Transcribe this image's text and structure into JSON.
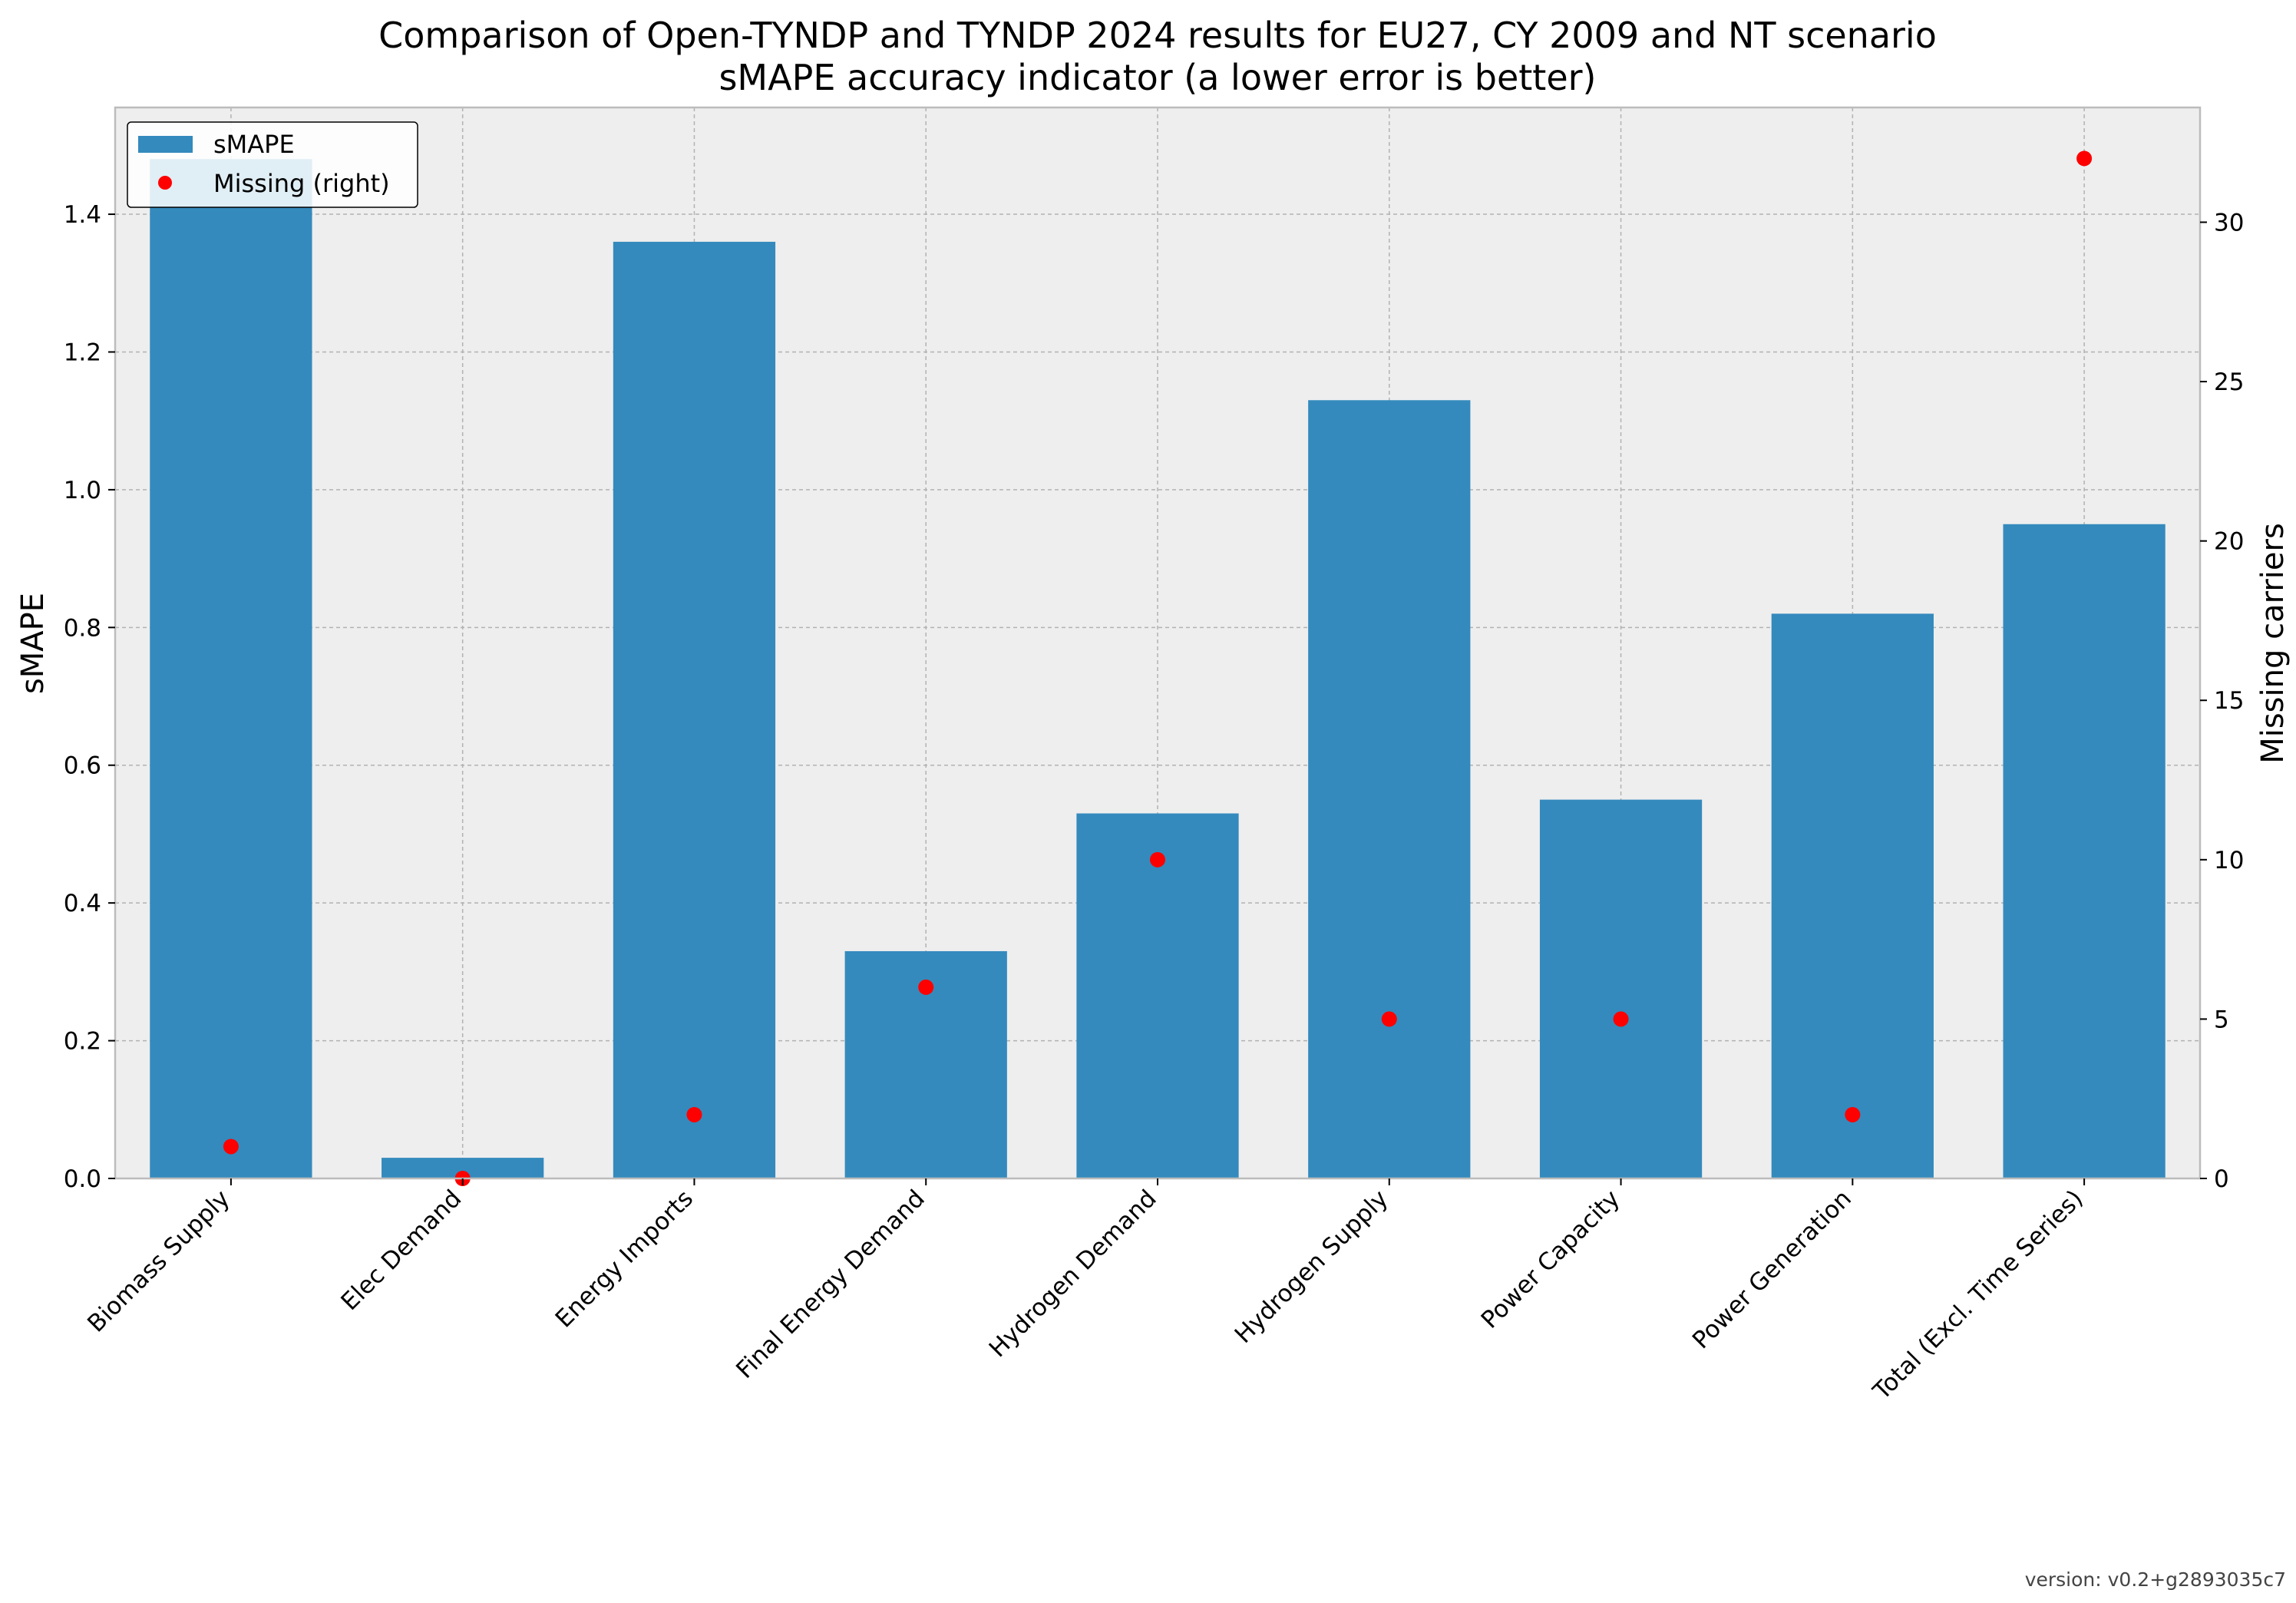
{
  "chart_data": {
    "type": "bar",
    "title": "Comparison of Open-TYNDP and TYNDP 2024 results for EU27, CY 2009 and NT scenario",
    "subtitle": "sMAPE accuracy indicator (a lower error is better)",
    "categories": [
      "Biomass Supply",
      "Elec Demand",
      "Energy Imports",
      "Final Energy Demand",
      "Hydrogen Demand",
      "Hydrogen Supply",
      "Power Capacity",
      "Power Generation",
      "Total (Excl. Time Series)"
    ],
    "series": [
      {
        "name": "sMAPE",
        "type": "bar",
        "axis": "left",
        "color": "#348abd",
        "values": [
          1.48,
          0.03,
          1.36,
          0.33,
          0.53,
          1.13,
          0.55,
          0.82,
          0.95
        ]
      },
      {
        "name": "Missing (right)",
        "type": "scatter",
        "axis": "right",
        "color": "#ff0000",
        "values": [
          1,
          0,
          2,
          6,
          10,
          5,
          5,
          2,
          32
        ]
      }
    ],
    "ylabel": "sMAPE",
    "ylabel_right": "Missing carriers",
    "ylim": [
      0,
      1.555
    ],
    "ylim_right": [
      0,
      33.6
    ],
    "yticks": [
      "0.0",
      "0.2",
      "0.4",
      "0.6",
      "0.8",
      "1.0",
      "1.2",
      "1.4"
    ],
    "yticks_right": [
      "0",
      "5",
      "10",
      "15",
      "20",
      "25",
      "30"
    ],
    "grid": true,
    "legend_position": "top-left",
    "background_color": "#eeeeee"
  },
  "footer": {
    "version": "version: v0.2+g2893035c7"
  }
}
